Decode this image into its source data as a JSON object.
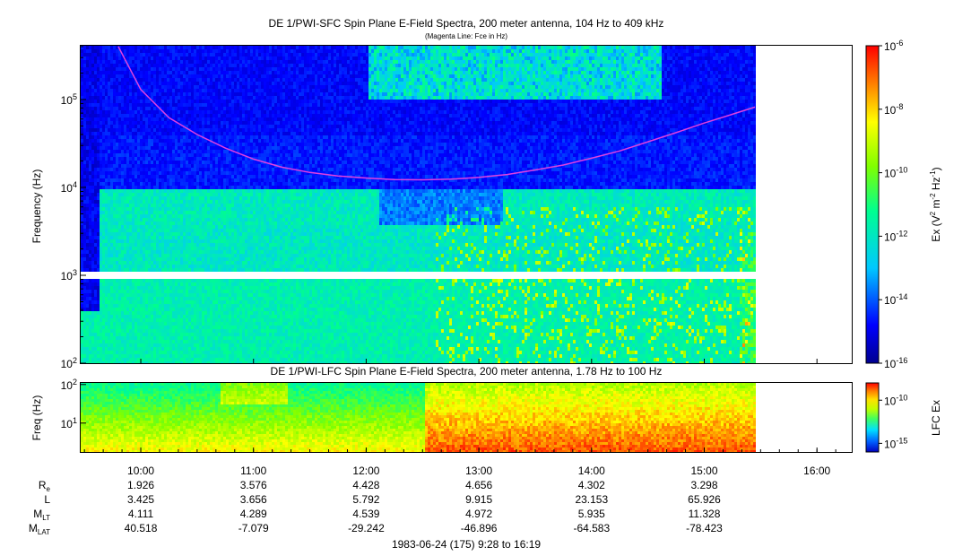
{
  "chart_data": [
    {
      "type": "heatmap",
      "title": "DE 1/PWI-SFC  Spin Plane E-Field Spectra, 200 meter antenna, 104 Hz to 409 kHz",
      "subtitle": "(Magenta Line: Fce in Hz)",
      "ylabel": "Frequency (Hz)",
      "yscale": "log",
      "ylim": [
        100,
        409000
      ],
      "yticks": [
        {
          "value": 100,
          "mant": "10",
          "exp": "2"
        },
        {
          "value": 1000,
          "mant": "10",
          "exp": "3"
        },
        {
          "value": 10000,
          "mant": "10",
          "exp": "4"
        },
        {
          "value": 100000,
          "mant": "10",
          "exp": "5"
        }
      ],
      "data_gap_hz": [
        930,
        1070
      ],
      "colorbar": {
        "label_pre": "Ex (V",
        "label_sup1": "2",
        "label_mid": " m",
        "label_sup2": "-2",
        "label_hz": " Hz",
        "label_sup3": "-1",
        "label_post": ")",
        "scale": "log",
        "range": [
          1e-16,
          1e-06
        ],
        "ticks": [
          {
            "value": 1e-06,
            "mant": "10",
            "exp": "-6"
          },
          {
            "value": 1e-08,
            "mant": "10",
            "exp": "-8"
          },
          {
            "value": 1e-10,
            "mant": "10",
            "exp": "-10"
          },
          {
            "value": 1e-12,
            "mant": "10",
            "exp": "-12"
          },
          {
            "value": 1e-14,
            "mant": "10",
            "exp": "-14"
          },
          {
            "value": 1e-16,
            "mant": "10",
            "exp": "-16"
          }
        ]
      },
      "fce_line": {
        "name": "Fce",
        "color": "#e040e0",
        "t_hours": [
          9.8,
          10.0,
          10.25,
          10.5,
          10.75,
          11.0,
          11.25,
          11.5,
          11.75,
          12.0,
          12.25,
          12.5,
          12.75,
          13.0,
          13.25,
          13.5,
          13.75,
          14.0,
          14.25,
          14.5,
          14.75,
          15.0,
          15.25,
          15.45
        ],
        "f_hz": [
          400000,
          130000,
          62000,
          40000,
          28000,
          21000,
          17000,
          14800,
          13500,
          12800,
          12300,
          12200,
          12400,
          13000,
          14000,
          15800,
          18000,
          21500,
          26000,
          33000,
          42000,
          54000,
          68000,
          82000
        ]
      }
    },
    {
      "type": "heatmap",
      "title": "DE 1/PWI-LFC  Spin Plane E-Field Spectra, 200 meter antenna, 1.78 Hz to 100 Hz",
      "ylabel": "Freq (Hz)",
      "yscale": "log",
      "ylim": [
        1.78,
        110
      ],
      "yticks": [
        {
          "value": 10,
          "mant": "10",
          "exp": "1"
        },
        {
          "value": 100,
          "mant": "10",
          "exp": "2"
        }
      ],
      "colorbar": {
        "label": "LFC Ex",
        "scale": "log",
        "range": [
          1e-16,
          1e-08
        ],
        "ticks": [
          {
            "value": 1e-10,
            "mant": "10",
            "exp": "-10"
          },
          {
            "value": 1e-15,
            "mant": "10",
            "exp": "-15"
          }
        ]
      }
    }
  ],
  "time_axis": {
    "start_hour": 9.4667,
    "end_hour": 16.3167,
    "data_end_hour": 15.45,
    "ticks": [
      {
        "value": 10,
        "label": "10:00"
      },
      {
        "value": 11,
        "label": "11:00"
      },
      {
        "value": 12,
        "label": "12:00"
      },
      {
        "value": 13,
        "label": "13:00"
      },
      {
        "value": 14,
        "label": "14:00"
      },
      {
        "value": 15,
        "label": "15:00"
      },
      {
        "value": 16,
        "label": "16:00"
      }
    ]
  },
  "ephemeris": {
    "rows": [
      {
        "label": "R",
        "sub": "e",
        "values": [
          "1.926",
          "3.576",
          "4.428",
          "4.656",
          "4.302",
          "3.298"
        ]
      },
      {
        "label": "L",
        "sub": "",
        "values": [
          "3.425",
          "3.656",
          "5.792",
          "9.915",
          "23.153",
          "65.926"
        ]
      },
      {
        "label": "M",
        "sub": "LT",
        "values": [
          "4.111",
          "4.289",
          "4.539",
          "4.972",
          "5.935",
          "11.328"
        ]
      },
      {
        "label": "M",
        "sub": "LAT",
        "values": [
          "40.518",
          "-7.079",
          "-29.242",
          "-46.896",
          "-64.583",
          "-78.423"
        ]
      }
    ]
  },
  "footer": "1983-06-24 (175) 9:28 to 16:19"
}
